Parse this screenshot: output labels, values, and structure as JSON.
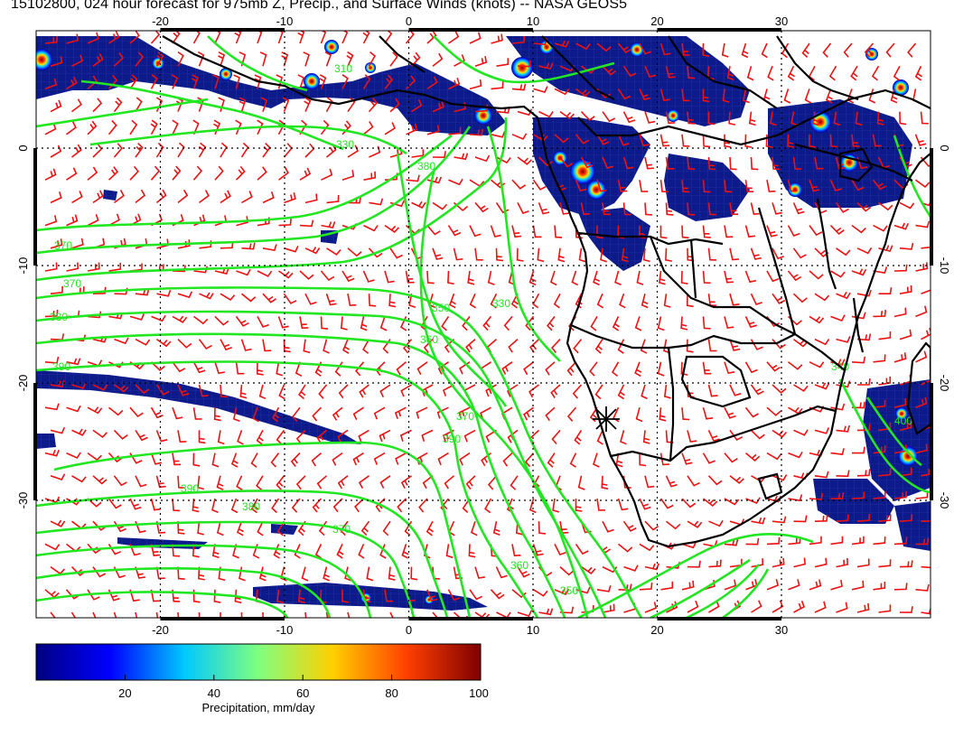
{
  "title": "15102800, 024 hour forecast for 975mb Z, Precip., and Surface Winds (knots) -- NASA GEOS5",
  "map": {
    "lon_range": [
      -30,
      42
    ],
    "lat_range": [
      -40,
      10
    ],
    "lon_ticks": [
      "-20",
      "-10",
      "0",
      "10",
      "20",
      "30"
    ],
    "lon_tick_values": [
      -20,
      -10,
      0,
      10,
      20,
      30
    ],
    "lat_ticks": [
      "0",
      "-10",
      "-20",
      "-30"
    ],
    "lat_tick_values": [
      0,
      -10,
      -20,
      -30
    ],
    "contour_color": "#22e622",
    "barb_color": "#ee1111",
    "coast_color": "#000000",
    "contour_labels": [
      "310",
      "330",
      "340",
      "350",
      "360",
      "370",
      "380",
      "390",
      "400"
    ],
    "marker": {
      "lon": 15,
      "lat": -23,
      "symbol": "asterisk"
    }
  },
  "colorbar": {
    "label": "Precipitation, mm/day",
    "ticks": [
      "20",
      "40",
      "60",
      "80",
      "100"
    ],
    "tick_values": [
      20,
      40,
      60,
      80,
      100
    ],
    "range": [
      0,
      100
    ],
    "colors": [
      "#000080",
      "#0000ff",
      "#00c8ff",
      "#7fff7f",
      "#ffd000",
      "#ff4000",
      "#800000"
    ]
  }
}
